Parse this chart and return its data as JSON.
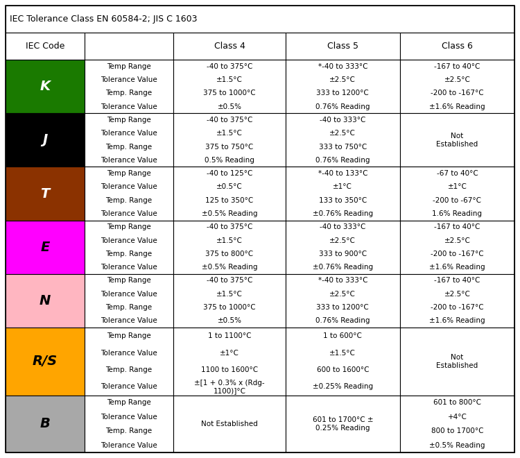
{
  "title": "IEC Tolerance Class EN 60584-2; JIS C 1603",
  "header": [
    "IEC Code",
    "",
    "Class 4",
    "Class 5",
    "Class 6"
  ],
  "rows": [
    {
      "code": "K",
      "bg_color": "#1a7a00",
      "text_color": "#ffffff",
      "labels": [
        "Temp Range",
        "Tolerance Value",
        "Temp. Range",
        "Tolerance Value"
      ],
      "class4": [
        "-40 to 375°C",
        "±1.5°C",
        "375 to 1000°C",
        "±0.5%"
      ],
      "class5": [
        "*-40 to 333°C",
        "±2.5°C",
        "333 to 1200°C",
        "0.76% Reading"
      ],
      "class6": [
        "-167 to 40°C",
        "±2.5°C",
        "-200 to -167°C",
        "±1.6% Reading"
      ]
    },
    {
      "code": "J",
      "bg_color": "#000000",
      "text_color": "#ffffff",
      "labels": [
        "Temp Range",
        "Tolerance Value",
        "Temp. Range",
        "Tolerance Value"
      ],
      "class4": [
        "-40 to 375°C",
        "±1.5°C",
        "375 to 750°C",
        "0.5% Reading"
      ],
      "class5": [
        "-40 to 333°C",
        "±2.5°C",
        "333 to 750°C",
        "0.76% Reading"
      ],
      "class6_special": "Not\nEstablished"
    },
    {
      "code": "T",
      "bg_color": "#8b3200",
      "text_color": "#ffffff",
      "labels": [
        "Temp Range",
        "Tolerance Value",
        "Temp. Range",
        "Tolerance Value"
      ],
      "class4": [
        "-40 to 125°C",
        "±0.5°C",
        "125 to 350°C",
        "±0.5% Reading"
      ],
      "class5": [
        "*-40 to 133°C",
        "±1°C",
        "133 to 350°C",
        "±0.76% Reading"
      ],
      "class6": [
        "-67 to 40°C",
        "±1°C",
        "-200 to -67°C",
        "1.6% Reading"
      ]
    },
    {
      "code": "E",
      "bg_color": "#ff00ff",
      "text_color": "#000000",
      "labels": [
        "Temp Range",
        "Tolerance Value",
        "Temp. Range",
        "Tolerance Value"
      ],
      "class4": [
        "-40 to 375°C",
        "±1.5°C",
        "375 to 800°C",
        "±0.5% Reading"
      ],
      "class5": [
        "-40 to 333°C",
        "±2.5°C",
        "333 to 900°C",
        "±0.76% Reading"
      ],
      "class6": [
        "-167 to 40°C",
        "±2.5°C",
        "-200 to -167°C",
        "±1.6% Reading"
      ]
    },
    {
      "code": "N",
      "bg_color": "#ffb6c1",
      "text_color": "#000000",
      "labels": [
        "Temp Range",
        "Tolerance Value",
        "Temp. Range",
        "Tolerance Value"
      ],
      "class4": [
        "-40 to 375°C",
        "±1.5°C",
        "375 to 1000°C",
        "±0.5%"
      ],
      "class5": [
        "*-40 to 333°C",
        "±2.5°C",
        "333 to 1200°C",
        "0.76% Reading"
      ],
      "class6": [
        "-167 to 40°C",
        "±2.5°C",
        "-200 to -167°C",
        "±1.6% Reading"
      ]
    },
    {
      "code": "R/S",
      "bg_color": "#ffa500",
      "text_color": "#000000",
      "labels": [
        "Temp Range",
        "Tolerance Value",
        "Temp. Range",
        "Tolerance Value"
      ],
      "class4": [
        "1 to 1100°C",
        "±1°C",
        "1100 to 1600°C",
        "±[1 + 0.3% x (Rdg-\n1100)]°C"
      ],
      "class5": [
        "1 to 600°C",
        "±1.5°C",
        "600 to 1600°C",
        "±0.25% Reading"
      ],
      "class6_special": "Not\nEstablished"
    },
    {
      "code": "B",
      "bg_color": "#a8a8a8",
      "text_color": "#000000",
      "labels": [
        "Temp Range",
        "Tolerance Value",
        "Temp. Range",
        "Tolerance Value"
      ],
      "class4_special": "Not Established",
      "class5_special": "601 to 1700°C ±\n0.25% Reading",
      "class6": [
        "601 to 800°C",
        "+4°C",
        "800 to 1700°C",
        "±0.5% Reading"
      ]
    }
  ],
  "bg_white": "#ffffff",
  "fontsize_title": 9,
  "fontsize_header": 9,
  "fontsize_label": 7.5,
  "fontsize_cell": 7.5,
  "fontsize_code": 14
}
